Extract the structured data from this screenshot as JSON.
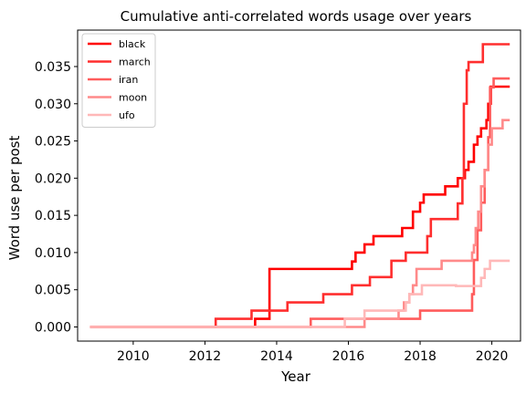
{
  "chart_data": {
    "type": "line",
    "title": "Cumulative anti-correlated words usage over years",
    "xlabel": "Year",
    "ylabel": "Word use per post",
    "xlim": [
      2008.45,
      2020.8
    ],
    "ylim": [
      -0.0019,
      0.0399
    ],
    "x_ticks": [
      2010,
      2012,
      2014,
      2016,
      2018,
      2020
    ],
    "y_ticks": [
      0.0,
      0.005,
      0.01,
      0.015,
      0.02,
      0.025,
      0.03,
      0.035
    ],
    "y_tick_labels": [
      "0.000",
      "0.005",
      "0.010",
      "0.015",
      "0.020",
      "0.025",
      "0.030",
      "0.035"
    ],
    "grid": false,
    "legend_position": "top-left",
    "step": true,
    "series": [
      {
        "name": "black",
        "color": "#ff0000",
        "points": [
          [
            2008.8,
            0.0
          ],
          [
            2013.4,
            0.0
          ],
          [
            2013.4,
            0.0011
          ],
          [
            2013.8,
            0.0011
          ],
          [
            2013.8,
            0.0078
          ],
          [
            2016.1,
            0.0078
          ],
          [
            2016.1,
            0.0088
          ],
          [
            2016.2,
            0.0088
          ],
          [
            2016.2,
            0.01
          ],
          [
            2016.45,
            0.01
          ],
          [
            2016.45,
            0.0111
          ],
          [
            2016.7,
            0.0111
          ],
          [
            2016.7,
            0.0122
          ],
          [
            2017.5,
            0.0122
          ],
          [
            2017.5,
            0.0133
          ],
          [
            2017.8,
            0.0133
          ],
          [
            2017.8,
            0.0155
          ],
          [
            2018.0,
            0.0155
          ],
          [
            2018.0,
            0.0167
          ],
          [
            2018.1,
            0.0167
          ],
          [
            2018.1,
            0.0178
          ],
          [
            2018.7,
            0.0178
          ],
          [
            2018.7,
            0.0189
          ],
          [
            2019.05,
            0.0189
          ],
          [
            2019.05,
            0.02
          ],
          [
            2019.25,
            0.02
          ],
          [
            2019.25,
            0.0211
          ],
          [
            2019.35,
            0.0211
          ],
          [
            2019.35,
            0.0222
          ],
          [
            2019.5,
            0.0222
          ],
          [
            2019.5,
            0.0245
          ],
          [
            2019.6,
            0.0245
          ],
          [
            2019.6,
            0.0256
          ],
          [
            2019.7,
            0.0256
          ],
          [
            2019.7,
            0.0267
          ],
          [
            2019.85,
            0.0267
          ],
          [
            2019.85,
            0.0278
          ],
          [
            2019.9,
            0.0278
          ],
          [
            2019.9,
            0.03
          ],
          [
            2019.97,
            0.03
          ],
          [
            2019.97,
            0.0323
          ],
          [
            2020.5,
            0.0323
          ]
        ]
      },
      {
        "name": "march",
        "color": "#ff2e2e",
        "points": [
          [
            2008.8,
            0.0
          ],
          [
            2012.3,
            0.0
          ],
          [
            2012.3,
            0.0011
          ],
          [
            2013.3,
            0.0011
          ],
          [
            2013.3,
            0.0022
          ],
          [
            2014.3,
            0.0022
          ],
          [
            2014.3,
            0.0033
          ],
          [
            2015.3,
            0.0033
          ],
          [
            2015.3,
            0.0044
          ],
          [
            2016.1,
            0.0044
          ],
          [
            2016.1,
            0.0056
          ],
          [
            2016.6,
            0.0056
          ],
          [
            2016.6,
            0.0067
          ],
          [
            2017.2,
            0.0067
          ],
          [
            2017.2,
            0.0089
          ],
          [
            2017.6,
            0.0089
          ],
          [
            2017.6,
            0.01
          ],
          [
            2018.2,
            0.01
          ],
          [
            2018.2,
            0.0122
          ],
          [
            2018.3,
            0.0122
          ],
          [
            2018.3,
            0.0145
          ],
          [
            2019.05,
            0.0145
          ],
          [
            2019.05,
            0.0166
          ],
          [
            2019.18,
            0.0166
          ],
          [
            2019.18,
            0.02
          ],
          [
            2019.22,
            0.02
          ],
          [
            2019.22,
            0.03
          ],
          [
            2019.3,
            0.03
          ],
          [
            2019.3,
            0.0345
          ],
          [
            2019.35,
            0.0345
          ],
          [
            2019.35,
            0.0356
          ],
          [
            2019.75,
            0.0356
          ],
          [
            2019.75,
            0.038
          ],
          [
            2020.5,
            0.038
          ]
        ]
      },
      {
        "name": "iran",
        "color": "#ff5c5c",
        "points": [
          [
            2008.8,
            0.0
          ],
          [
            2014.95,
            0.0
          ],
          [
            2014.95,
            0.0011
          ],
          [
            2018.0,
            0.0011
          ],
          [
            2018.0,
            0.0022
          ],
          [
            2019.45,
            0.0022
          ],
          [
            2019.45,
            0.0044
          ],
          [
            2019.5,
            0.0044
          ],
          [
            2019.5,
            0.009
          ],
          [
            2019.6,
            0.009
          ],
          [
            2019.6,
            0.013
          ],
          [
            2019.7,
            0.013
          ],
          [
            2019.7,
            0.0167
          ],
          [
            2019.8,
            0.0167
          ],
          [
            2019.8,
            0.0211
          ],
          [
            2019.9,
            0.0211
          ],
          [
            2019.9,
            0.0255
          ],
          [
            2019.95,
            0.0255
          ],
          [
            2019.95,
            0.0322
          ],
          [
            2020.05,
            0.0322
          ],
          [
            2020.05,
            0.0334
          ],
          [
            2020.5,
            0.0334
          ]
        ]
      },
      {
        "name": "moon",
        "color": "#ff8a8a",
        "points": [
          [
            2008.8,
            0.0
          ],
          [
            2016.45,
            0.0
          ],
          [
            2016.45,
            0.0011
          ],
          [
            2017.4,
            0.0011
          ],
          [
            2017.4,
            0.0022
          ],
          [
            2017.55,
            0.0022
          ],
          [
            2017.55,
            0.0033
          ],
          [
            2017.7,
            0.0033
          ],
          [
            2017.7,
            0.0044
          ],
          [
            2017.8,
            0.0044
          ],
          [
            2017.8,
            0.0056
          ],
          [
            2017.9,
            0.0056
          ],
          [
            2017.9,
            0.0078
          ],
          [
            2018.6,
            0.0078
          ],
          [
            2018.6,
            0.0089
          ],
          [
            2019.45,
            0.0089
          ],
          [
            2019.45,
            0.01
          ],
          [
            2019.5,
            0.01
          ],
          [
            2019.5,
            0.011
          ],
          [
            2019.55,
            0.011
          ],
          [
            2019.55,
            0.0133
          ],
          [
            2019.62,
            0.0133
          ],
          [
            2019.62,
            0.0155
          ],
          [
            2019.7,
            0.0155
          ],
          [
            2019.7,
            0.0189
          ],
          [
            2019.8,
            0.0189
          ],
          [
            2019.8,
            0.0211
          ],
          [
            2019.9,
            0.0211
          ],
          [
            2019.9,
            0.0245
          ],
          [
            2020.0,
            0.0245
          ],
          [
            2020.0,
            0.0267
          ],
          [
            2020.3,
            0.0267
          ],
          [
            2020.3,
            0.0278
          ],
          [
            2020.5,
            0.0278
          ]
        ]
      },
      {
        "name": "ufo",
        "color": "#ffb8b8",
        "points": [
          [
            2008.8,
            0.0
          ],
          [
            2015.9,
            0.0
          ],
          [
            2015.9,
            0.0011
          ],
          [
            2016.45,
            0.0011
          ],
          [
            2016.45,
            0.0022
          ],
          [
            2017.6,
            0.0022
          ],
          [
            2017.6,
            0.0033
          ],
          [
            2017.7,
            0.0033
          ],
          [
            2017.7,
            0.0044
          ],
          [
            2018.05,
            0.0044
          ],
          [
            2018.05,
            0.0056
          ],
          [
            2019.0,
            0.0056
          ],
          [
            2019.0,
            0.0055
          ],
          [
            2019.7,
            0.0055
          ],
          [
            2019.7,
            0.0066
          ],
          [
            2019.8,
            0.0066
          ],
          [
            2019.8,
            0.0078
          ],
          [
            2019.95,
            0.0078
          ],
          [
            2019.95,
            0.0089
          ],
          [
            2020.5,
            0.0089
          ]
        ]
      }
    ]
  }
}
